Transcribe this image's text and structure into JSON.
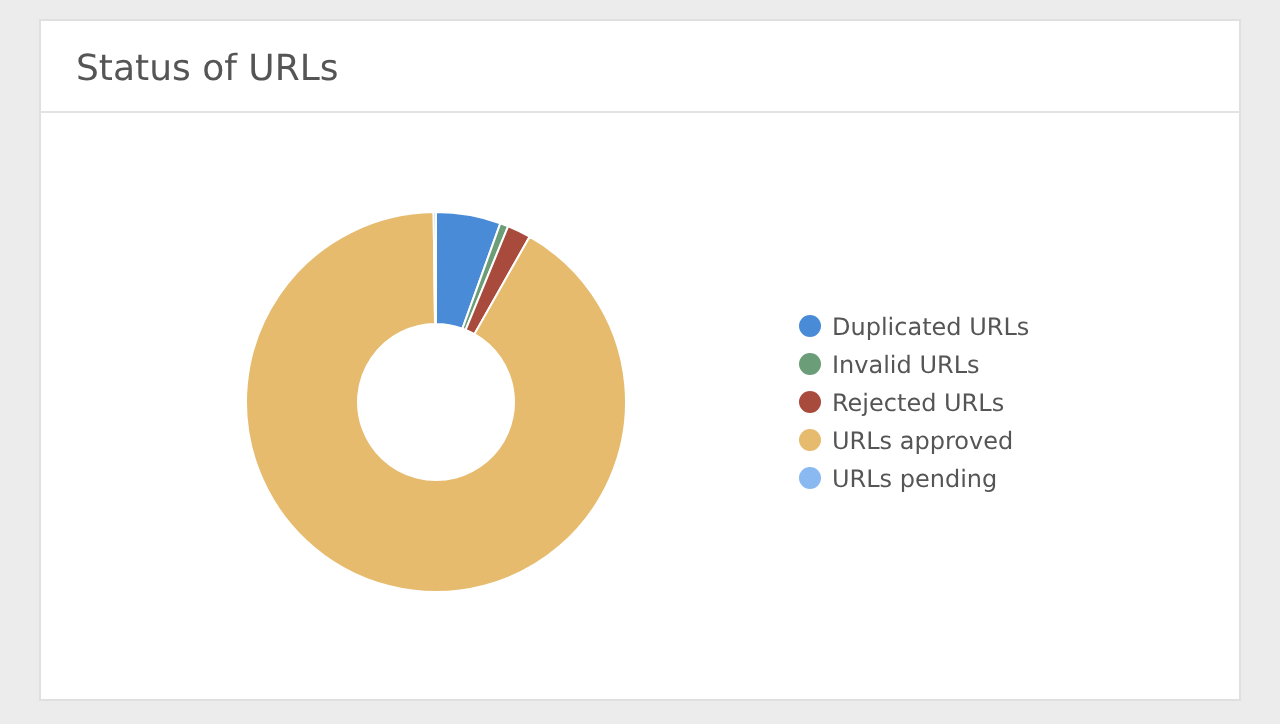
{
  "chart_data": {
    "type": "donut",
    "title": "Status of URLs",
    "categories": [
      "Duplicated URLs",
      "Invalid URLs",
      "Rejected URLs",
      "URLs approved",
      "URLs pending"
    ],
    "values": [
      5.5,
      0.7,
      2,
      91.6,
      0.2
    ],
    "colors": [
      "#4a8bd8",
      "#6b9e78",
      "#a84a3c",
      "#e6bb6e",
      "#8ab8f0"
    ],
    "legend": "right"
  }
}
